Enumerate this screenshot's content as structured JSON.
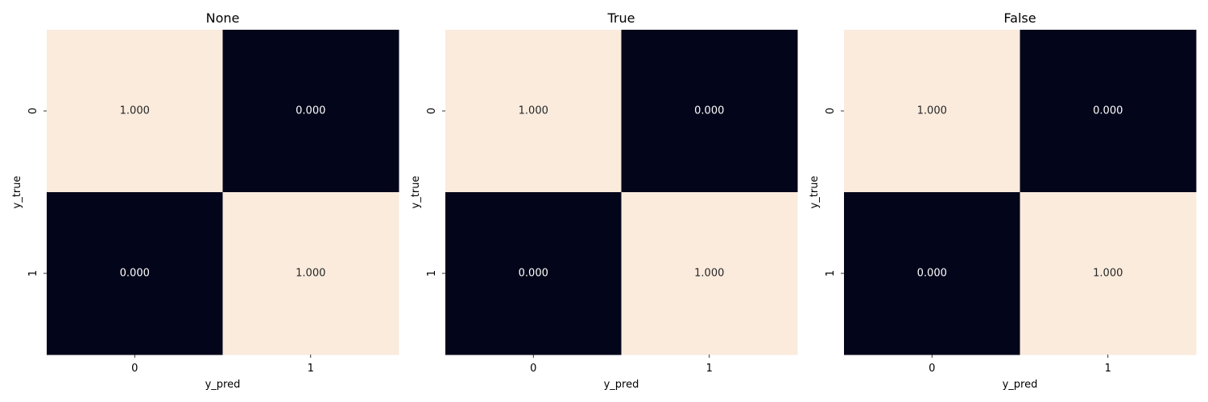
{
  "chart_data": [
    {
      "type": "heatmap",
      "title": "None",
      "xlabel": "y_pred",
      "ylabel": "y_true",
      "x_ticks": [
        "0",
        "1"
      ],
      "y_ticks": [
        "0",
        "1"
      ],
      "values": [
        [
          1.0,
          0.0
        ],
        [
          0.0,
          1.0
        ]
      ],
      "cell_labels": [
        [
          "1.000",
          "0.000"
        ],
        [
          "0.000",
          "1.000"
        ]
      ],
      "colorbar": false,
      "grid": false
    },
    {
      "type": "heatmap",
      "title": "True",
      "xlabel": "y_pred",
      "ylabel": "y_true",
      "x_ticks": [
        "0",
        "1"
      ],
      "y_ticks": [
        "0",
        "1"
      ],
      "values": [
        [
          1.0,
          0.0
        ],
        [
          0.0,
          1.0
        ]
      ],
      "cell_labels": [
        [
          "1.000",
          "0.000"
        ],
        [
          "0.000",
          "1.000"
        ]
      ],
      "colorbar": false,
      "grid": false
    },
    {
      "type": "heatmap",
      "title": "False",
      "xlabel": "y_pred",
      "ylabel": "y_true",
      "x_ticks": [
        "0",
        "1"
      ],
      "y_ticks": [
        "0",
        "1"
      ],
      "values": [
        [
          1.0,
          0.0
        ],
        [
          0.0,
          1.0
        ]
      ],
      "cell_labels": [
        [
          "1.000",
          "0.000"
        ],
        [
          "0.000",
          "1.000"
        ]
      ],
      "colorbar": false,
      "grid": false
    }
  ],
  "colors": {
    "high": "#faebdd",
    "low": "#03051a",
    "text_on_high": "#262626",
    "text_on_low": "#ffffff",
    "tick": "#000000"
  }
}
